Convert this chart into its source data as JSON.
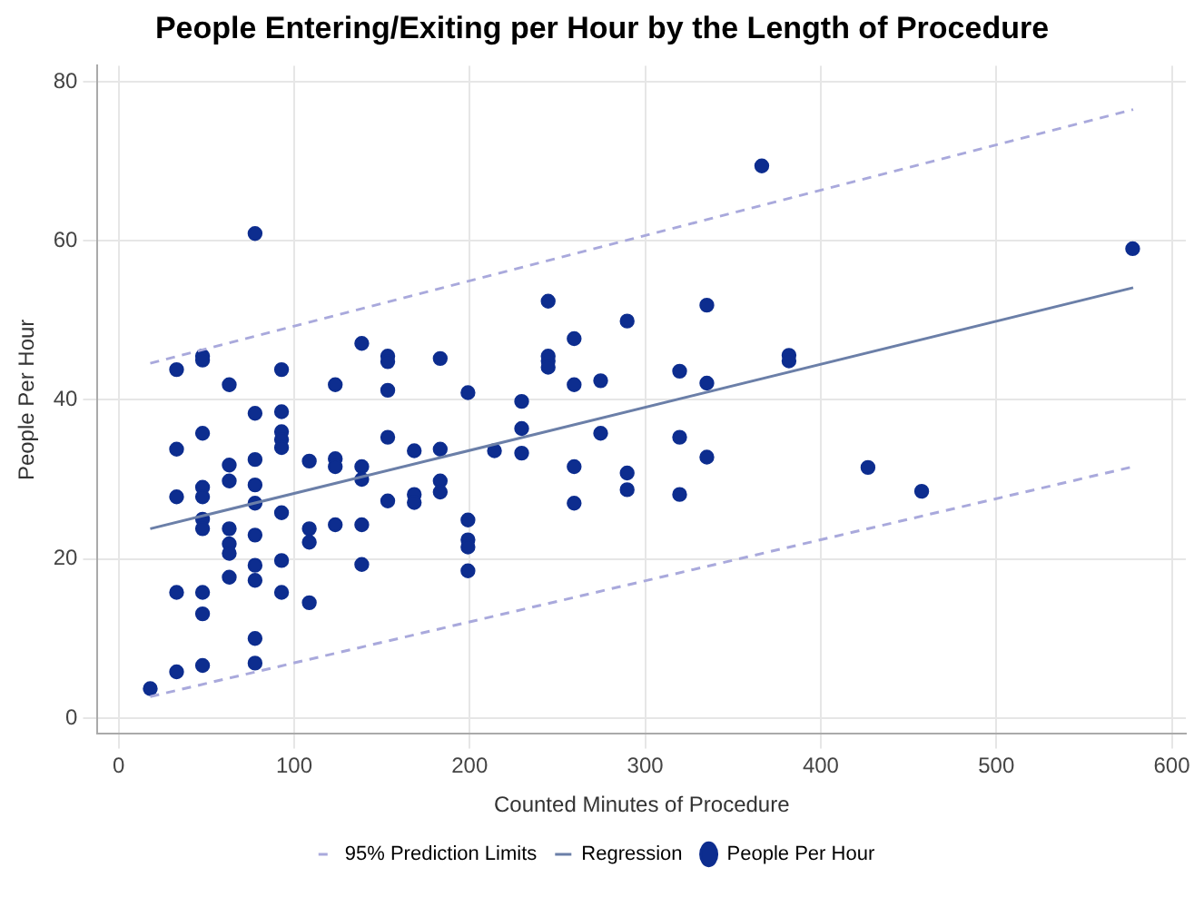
{
  "chart_data": {
    "type": "scatter",
    "title": "People Entering/Exiting per Hour by the Length of Procedure",
    "xlabel": "Counted Minutes of Procedure",
    "ylabel": "People Per Hour",
    "xlim": [
      -12,
      608
    ],
    "xticks": [
      0,
      100,
      200,
      300,
      400,
      500,
      600
    ],
    "ylim": [
      -2,
      82
    ],
    "yticks": [
      0,
      20,
      40,
      60,
      80
    ],
    "grid": true,
    "legend": "bottom",
    "series": [
      {
        "name": "95% Prediction Limits",
        "type": "line",
        "line_style": "dashed",
        "marker": "none",
        "color": "#a9a9dc",
        "x": [
          18,
          578
        ],
        "values": [
          44.6,
          76.5
        ]
      },
      {
        "type": "line",
        "line_style": "dashed",
        "marker": "none",
        "color": "#a9a9dc",
        "x": [
          18,
          578
        ],
        "values": [
          2.7,
          31.6
        ]
      },
      {
        "name": "Regression",
        "type": "line",
        "line_style": "solid",
        "marker": "none",
        "color": "#6b7fa8",
        "x": [
          18,
          578
        ],
        "values": [
          23.8,
          54.1
        ]
      },
      {
        "name": "People Per Hour",
        "type": "scatter",
        "marker": "circle",
        "color": "#0d2d8f",
        "x": [
          18,
          33,
          33,
          33,
          33,
          33,
          47.8,
          47.8,
          47.8,
          47.8,
          47.8,
          47.8,
          47.8,
          47.8,
          47.8,
          47.8,
          63,
          63,
          63,
          63,
          63,
          63,
          63,
          77.7,
          77.7,
          77.7,
          77.7,
          77.7,
          77.7,
          77.7,
          77.7,
          77.7,
          77.7,
          92.8,
          92.8,
          92.8,
          92.8,
          92.8,
          92.8,
          92.8,
          92.8,
          108.6,
          108.6,
          108.6,
          108.6,
          123.4,
          123.4,
          123.4,
          123.4,
          138.5,
          138.5,
          138.5,
          138.5,
          138.5,
          153.3,
          153.3,
          153.3,
          153.3,
          153.3,
          168.4,
          168.4,
          168.4,
          183.2,
          183.2,
          183.2,
          183.2,
          199,
          199,
          199,
          199,
          199,
          214.1,
          229.6,
          229.6,
          229.6,
          244.7,
          244.7,
          244.7,
          244.7,
          259.5,
          259.5,
          259.5,
          259.5,
          274.6,
          274.6,
          289.7,
          289.7,
          289.7,
          319.6,
          319.6,
          319.6,
          335.1,
          335.1,
          335.1,
          366.4,
          381.9,
          381.9,
          426.9,
          457.5,
          577.7
        ],
        "values": [
          3.7,
          43.8,
          33.8,
          27.8,
          15.8,
          5.8,
          45.5,
          45,
          35.8,
          29,
          27.8,
          25,
          23.8,
          15.8,
          13.1,
          6.6,
          41.9,
          31.8,
          29.8,
          23.8,
          21.9,
          20.7,
          17.7,
          60.9,
          38.3,
          32.5,
          29.3,
          27,
          23,
          19.2,
          17.3,
          10,
          6.9,
          43.8,
          38.5,
          36,
          35,
          34,
          25.8,
          19.8,
          15.8,
          32.3,
          23.8,
          22.1,
          14.5,
          41.9,
          32.6,
          31.6,
          24.3,
          47.1,
          31.6,
          30,
          24.3,
          19.3,
          45.5,
          44.8,
          41.2,
          35.3,
          27.3,
          33.6,
          28.1,
          27.1,
          45.2,
          33.8,
          29.8,
          28.4,
          40.9,
          24.9,
          22.4,
          21.5,
          18.5,
          33.6,
          39.8,
          36.4,
          33.3,
          52.4,
          45.5,
          44.9,
          44.1,
          47.7,
          41.9,
          31.6,
          27,
          42.4,
          35.8,
          49.9,
          30.8,
          28.7,
          43.6,
          35.3,
          28.1,
          51.9,
          42.1,
          32.8,
          69.4,
          45.6,
          44.9,
          31.5,
          28.5,
          59
        ]
      }
    ]
  }
}
